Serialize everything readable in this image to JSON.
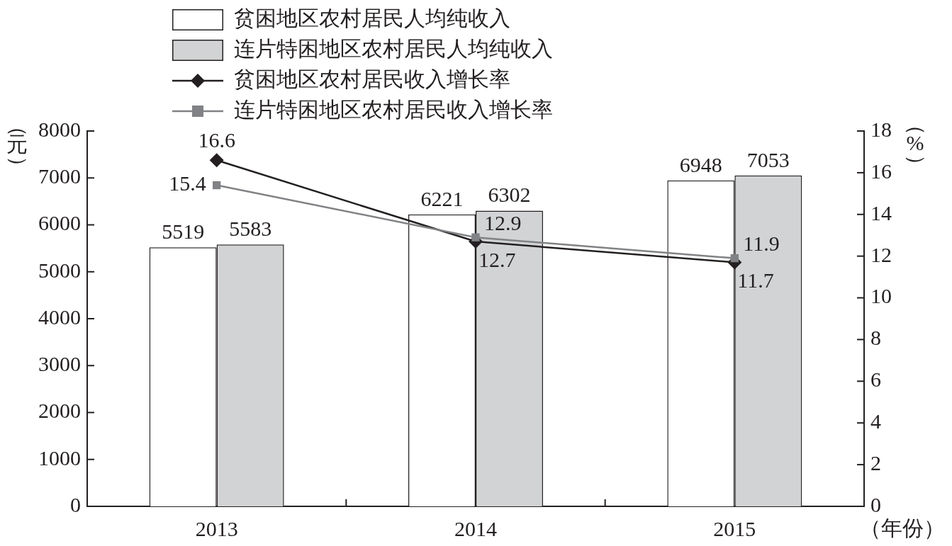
{
  "chart_data": {
    "type": "bar",
    "categories": [
      "2013",
      "2014",
      "2015"
    ],
    "series": [
      {
        "name": "贫困地区农村居民人均纯收入",
        "color": "#ffffff",
        "values": [
          5519,
          6221,
          6948
        ]
      },
      {
        "name": "连片特困地区农村居民人均纯收入",
        "color": "#d1d3d4",
        "values": [
          5583,
          6302,
          7053
        ]
      },
      {
        "name": "贫困地区农村居民收入增长率",
        "type": "line",
        "axis": "y2",
        "color": "#231f20",
        "marker": "diamond",
        "values": [
          16.6,
          12.7,
          11.7
        ]
      },
      {
        "name": "连片特困地区农村居民收入增长率",
        "type": "line",
        "axis": "y2",
        "color": "#808285",
        "marker": "square",
        "values": [
          15.4,
          12.9,
          11.9
        ]
      }
    ],
    "ylabel": "（元）",
    "y2label": "（%）",
    "xlabel": "（年份）",
    "ylim": [
      0,
      8000
    ],
    "yticks": [
      0,
      1000,
      2000,
      3000,
      4000,
      5000,
      6000,
      7000,
      8000
    ],
    "y2lim": [
      0,
      18
    ],
    "y2ticks": [
      0,
      2,
      4,
      6,
      8,
      10,
      12,
      14,
      16,
      18
    ],
    "data_labels": true,
    "legend": "top",
    "grid": false
  }
}
